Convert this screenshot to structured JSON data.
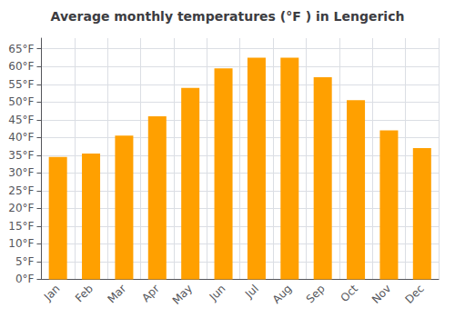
{
  "chart_data": {
    "type": "bar",
    "title": "Average monthly temperatures (°F ) in Lengerich",
    "categories": [
      "Jan",
      "Feb",
      "Mar",
      "Apr",
      "May",
      "Jun",
      "Jul",
      "Aug",
      "Sep",
      "Oct",
      "Nov",
      "Dec"
    ],
    "values": [
      34.5,
      35.5,
      40.5,
      46.0,
      54.0,
      59.5,
      62.5,
      62.5,
      57.0,
      50.5,
      42.0,
      37.0
    ],
    "color": "#FFA000",
    "ylim": [
      0,
      68
    ],
    "yticks": [
      {
        "value": 0,
        "label": "0°F"
      },
      {
        "value": 5,
        "label": "5°F"
      },
      {
        "value": 10,
        "label": "10°F"
      },
      {
        "value": 15,
        "label": "15°F"
      },
      {
        "value": 20,
        "label": "20°F"
      },
      {
        "value": 25,
        "label": "25°F"
      },
      {
        "value": 30,
        "label": "30°F"
      },
      {
        "value": 35,
        "label": "35°F"
      },
      {
        "value": 40,
        "label": "40°F"
      },
      {
        "value": 45,
        "label": "45°F"
      },
      {
        "value": 50,
        "label": "50°F"
      },
      {
        "value": 55,
        "label": "55°F"
      },
      {
        "value": 60,
        "label": "60°F"
      },
      {
        "value": 65,
        "label": "65°F"
      }
    ],
    "grid": true
  }
}
